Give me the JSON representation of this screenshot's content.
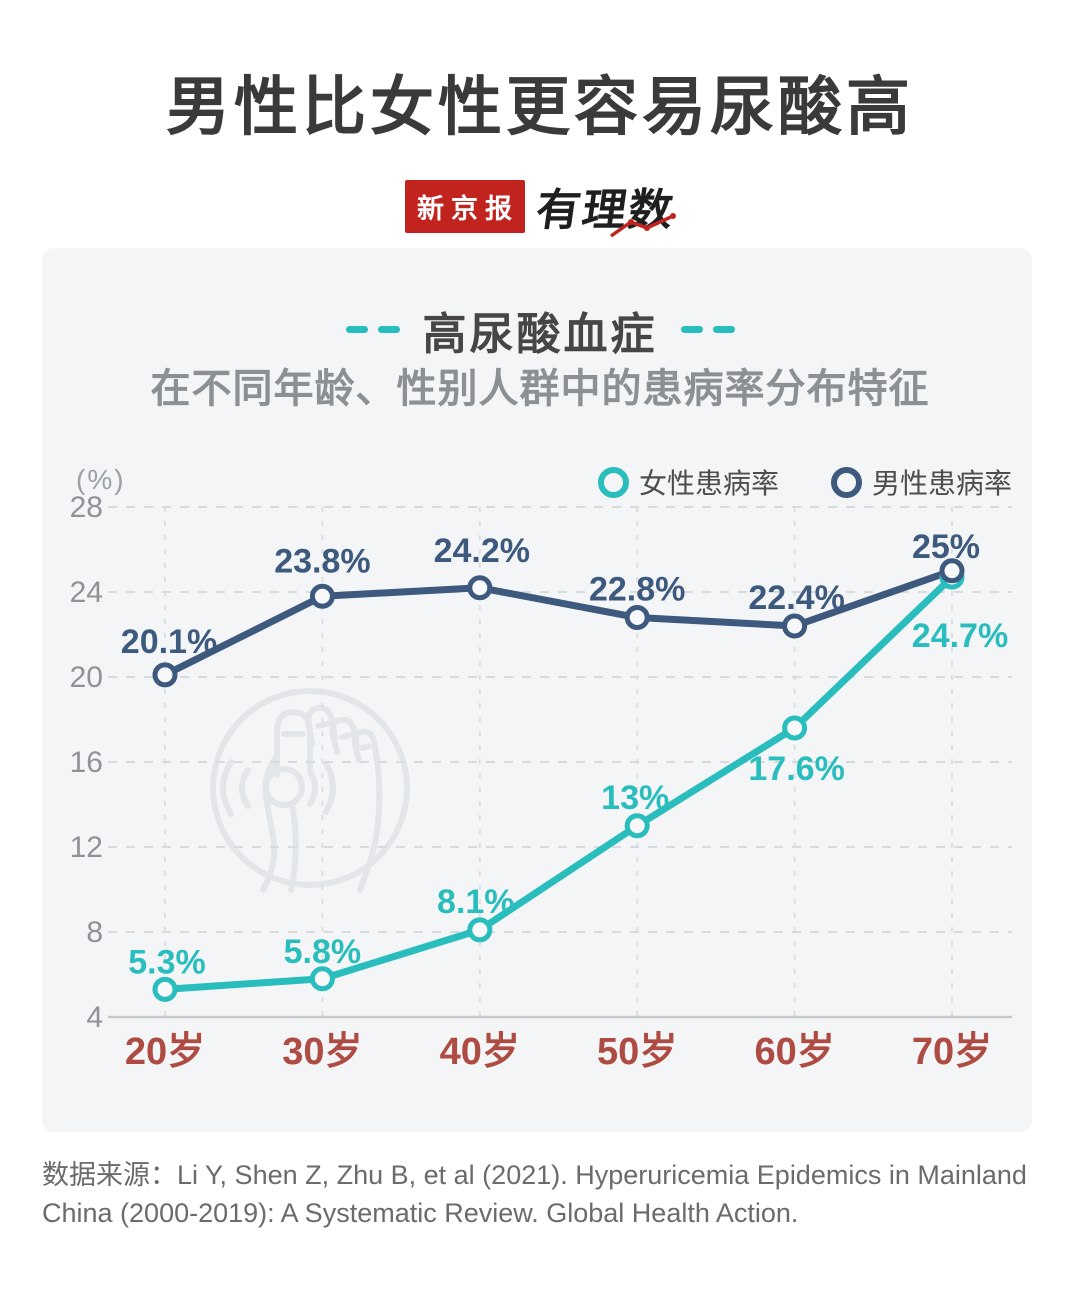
{
  "page": {
    "title": "男性比女性更容易尿酸高",
    "brand_badge": "新京报",
    "brand_logo": "有理数",
    "source_text": "数据来源：Li Y, Shen Z, Zhu B, et al (2021). Hyperuricemia Epidemics in Mainland China (2000-2019): A Systematic Review. Global Health Action."
  },
  "card": {
    "subtitle_main": "高尿酸血症",
    "subtitle_sub": "在不同年龄、性别人群中的患病率分布特征"
  },
  "chart_data": {
    "type": "line",
    "title": "高尿酸血症在不同年龄、性别人群中的患病率分布特征",
    "categories": [
      "20岁",
      "30岁",
      "40岁",
      "50岁",
      "60岁",
      "70岁"
    ],
    "series": [
      {
        "name": "女性患病率",
        "color": "#2abdbd",
        "values": [
          5.3,
          5.8,
          8.1,
          13,
          17.6,
          24.7
        ]
      },
      {
        "name": "男性患病率",
        "color": "#3d5a7e",
        "values": [
          20.1,
          23.8,
          24.2,
          22.8,
          22.4,
          25
        ]
      }
    ],
    "xlabel": "",
    "ylabel": "(%)",
    "ylim": [
      4,
      28
    ],
    "yticks": [
      4,
      8,
      12,
      16,
      20,
      24,
      28
    ],
    "grid": true,
    "legend_position": "top-right",
    "xtick_color": "#ae4b42",
    "label_format": "percent",
    "watermark": "gout-foot-icon",
    "colors": {
      "accent_teal": "#2abdbd",
      "accent_navy": "#3d5a7e",
      "brand_red": "#c1241e",
      "xtick_red": "#ae4b42",
      "card_bg": "#f4f5f6"
    }
  }
}
